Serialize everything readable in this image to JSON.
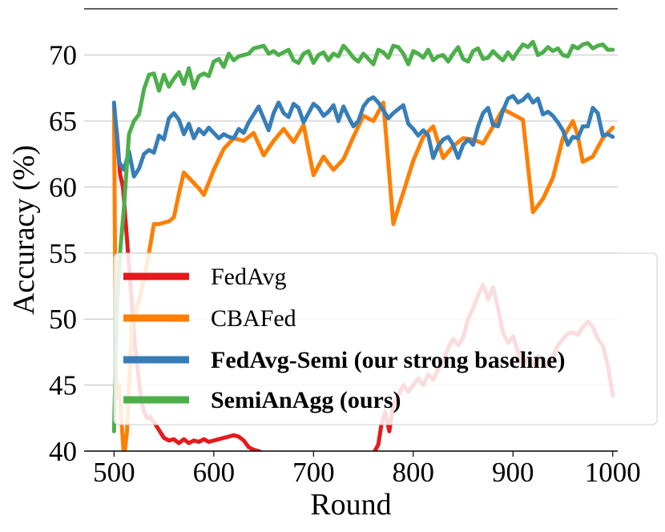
{
  "chart_data": {
    "type": "line",
    "xlabel": "Round",
    "ylabel": "Accuracy (%)",
    "xlim": [
      470,
      1005
    ],
    "ylim": [
      40,
      73.5
    ],
    "x_ticks": [
      500,
      600,
      700,
      800,
      900,
      1000
    ],
    "y_ticks": [
      40,
      45,
      50,
      55,
      60,
      65,
      70
    ],
    "grid": "horizontal",
    "legend_position": "lower-right",
    "series": [
      {
        "name": "FedAvg",
        "color": "#e41a1c",
        "bold": false,
        "x": [
          500,
          503,
          506,
          509,
          512,
          515,
          518,
          521,
          524,
          527,
          530,
          533,
          536,
          540,
          545,
          550,
          555,
          560,
          565,
          570,
          575,
          580,
          585,
          590,
          595,
          600,
          605,
          610,
          615,
          620,
          625,
          630,
          635,
          640,
          645,
          650,
          660,
          680,
          700,
          720,
          740,
          760,
          765,
          768,
          772,
          776,
          780,
          785,
          790,
          795,
          800,
          805,
          810,
          815,
          820,
          825,
          830,
          835,
          840,
          845,
          850,
          855,
          860,
          865,
          870,
          872,
          875,
          880,
          885,
          890,
          895,
          900,
          905,
          910,
          915,
          920,
          925,
          930,
          935,
          940,
          945,
          950,
          955,
          960,
          965,
          970,
          975,
          980,
          985,
          990,
          995,
          1000
        ],
        "y": [
          66,
          64,
          61,
          60,
          57,
          54,
          51,
          48,
          46,
          44,
          43,
          42.5,
          42.6,
          42.2,
          41.6,
          41.0,
          40.8,
          40.9,
          40.6,
          40.9,
          40.6,
          40.8,
          40.7,
          40.9,
          40.7,
          40.8,
          40.9,
          41.0,
          41.1,
          41.2,
          41.1,
          40.8,
          40.3,
          40.1,
          40.0,
          39.8,
          39.5,
          39.5,
          39.5,
          39.5,
          39.5,
          39.8,
          40.5,
          42,
          43,
          41.5,
          43.5,
          44.2,
          45,
          44.5,
          45,
          45.5,
          45,
          45.8,
          45.4,
          46.2,
          46.8,
          47.8,
          48.5,
          48.0,
          48.6,
          50,
          50.8,
          51.8,
          52.6,
          52.2,
          51.5,
          52.4,
          50.8,
          49,
          48.2,
          48.7,
          47.5,
          46.5,
          47.0,
          46.5,
          47.2,
          46.6,
          46.5,
          47.2,
          48.0,
          48.5,
          48.9,
          49,
          48.8,
          49.4,
          49.8,
          49.4,
          48.5,
          48.0,
          46.5,
          44.2
        ]
      },
      {
        "name": "CBAFed",
        "color": "#ff7f00",
        "bold": false,
        "x": [
          500,
          502,
          505,
          510,
          513,
          518,
          522,
          530,
          535,
          540,
          545,
          550,
          555,
          560,
          565,
          570,
          580,
          585,
          590,
          600,
          610,
          620,
          630,
          640,
          650,
          660,
          670,
          680,
          690,
          700,
          710,
          720,
          730,
          740,
          750,
          760,
          770,
          780,
          790,
          800,
          810,
          820,
          830,
          840,
          850,
          860,
          870,
          880,
          890,
          900,
          910,
          920,
          930,
          940,
          950,
          960,
          965,
          970,
          980,
          990,
          1000
        ],
        "y": [
          66.0,
          44,
          45,
          39.5,
          41.5,
          50,
          50.5,
          53,
          55,
          57.2,
          57.2,
          57.3,
          57.4,
          57.7,
          59.5,
          61.1,
          60.3,
          59.9,
          59.4,
          61.3,
          62.9,
          63.7,
          63.5,
          64.1,
          62.4,
          63.5,
          64.4,
          63.4,
          64.7,
          60.9,
          62.3,
          61.3,
          62.1,
          63.8,
          65.4,
          65.0,
          66.4,
          57.2,
          59.6,
          62.0,
          63.8,
          64.6,
          62.2,
          63.1,
          63.7,
          63.6,
          63.3,
          64.6,
          65.9,
          65.5,
          65.1,
          58.1,
          59.1,
          60.7,
          63.7,
          65.0,
          63.9,
          61.9,
          62.3,
          63.7,
          64.5
        ]
      },
      {
        "name": "FedAvg-Semi (our strong baseline)",
        "color": "#377eb8",
        "bold": true,
        "x": [
          500,
          505,
          510,
          515,
          520,
          525,
          530,
          535,
          540,
          545,
          550,
          555,
          560,
          565,
          570,
          575,
          580,
          585,
          590,
          595,
          600,
          605,
          610,
          615,
          620,
          625,
          630,
          635,
          640,
          645,
          650,
          655,
          660,
          665,
          670,
          675,
          680,
          685,
          690,
          695,
          700,
          705,
          710,
          715,
          720,
          725,
          730,
          735,
          740,
          745,
          750,
          755,
          760,
          765,
          770,
          775,
          780,
          785,
          790,
          795,
          800,
          805,
          810,
          815,
          820,
          825,
          830,
          835,
          840,
          845,
          850,
          855,
          860,
          865,
          870,
          875,
          880,
          885,
          890,
          895,
          900,
          905,
          910,
          915,
          920,
          925,
          930,
          935,
          940,
          945,
          950,
          955,
          960,
          965,
          970,
          975,
          980,
          985,
          990,
          995,
          1000
        ],
        "y": [
          66.4,
          61.9,
          61.3,
          62.7,
          60.8,
          61.4,
          62.5,
          62.8,
          62.6,
          63.9,
          63.6,
          65.2,
          65.6,
          65.1,
          64.0,
          64.8,
          63.7,
          64.4,
          64.0,
          64.5,
          64.1,
          63.7,
          64.0,
          63.8,
          63.7,
          64.4,
          64.1,
          64.9,
          65.5,
          66.1,
          65.2,
          64.3,
          65.6,
          66.4,
          65.6,
          65.3,
          66.3,
          66.0,
          64.9,
          65.6,
          66.3,
          66.0,
          65.4,
          65.7,
          66.2,
          65.0,
          66.1,
          65.3,
          64.6,
          65.0,
          66.1,
          66.6,
          66.8,
          66.4,
          65.8,
          65.2,
          65.6,
          65.9,
          66.2,
          64.8,
          64.4,
          63.9,
          64.3,
          63.9,
          62.2,
          63.1,
          63.6,
          63.8,
          63.2,
          62.2,
          63.2,
          63.6,
          63.2,
          64.6,
          65.6,
          66.0,
          64.7,
          64.6,
          65.8,
          66.7,
          66.9,
          66.4,
          66.6,
          67.0,
          66.4,
          66.7,
          65.5,
          65.7,
          65.4,
          64.9,
          64.3,
          63.2,
          63.8,
          63.7,
          64.6,
          64.6,
          66.0,
          65.6,
          63.9,
          64.0,
          63.8
        ]
      },
      {
        "name": "SemiAnAgg (ours)",
        "color": "#4daf4a",
        "bold": true,
        "x": [
          500,
          503,
          506,
          510,
          515,
          520,
          525,
          530,
          535,
          540,
          545,
          550,
          555,
          560,
          565,
          570,
          575,
          580,
          585,
          590,
          595,
          600,
          605,
          610,
          615,
          620,
          625,
          630,
          635,
          640,
          645,
          650,
          655,
          660,
          665,
          670,
          675,
          680,
          685,
          690,
          695,
          700,
          705,
          710,
          715,
          720,
          725,
          730,
          735,
          740,
          745,
          750,
          755,
          760,
          765,
          770,
          775,
          780,
          785,
          790,
          795,
          800,
          805,
          810,
          815,
          820,
          825,
          830,
          835,
          840,
          845,
          850,
          855,
          860,
          865,
          870,
          875,
          880,
          885,
          890,
          895,
          900,
          905,
          910,
          915,
          920,
          925,
          930,
          935,
          940,
          945,
          950,
          955,
          960,
          965,
          970,
          975,
          980,
          985,
          990,
          995,
          1000
        ],
        "y": [
          41.5,
          51,
          55,
          58.5,
          64,
          65,
          65.5,
          67.4,
          68.5,
          68.6,
          67.3,
          68.5,
          67.6,
          68.2,
          68.7,
          67.8,
          69.0,
          67.5,
          68.4,
          68.6,
          68.4,
          69.5,
          69.7,
          69.1,
          70.1,
          69.6,
          69.9,
          70.0,
          70.1,
          70.5,
          70.6,
          70.7,
          70.1,
          70.3,
          70.0,
          70.2,
          70.4,
          69.6,
          69.4,
          70.1,
          70.3,
          69.4,
          70.0,
          70.2,
          69.6,
          70.1,
          69.9,
          70.7,
          70.3,
          69.8,
          69.5,
          70.1,
          69.7,
          69.3,
          70.4,
          70.2,
          69.8,
          70.7,
          70.6,
          70.1,
          69.3,
          70.3,
          70.1,
          69.8,
          70.4,
          69.6,
          69.9,
          70.0,
          69.5,
          70.1,
          70.6,
          69.7,
          69.5,
          70.3,
          70.5,
          69.7,
          69.8,
          70.3,
          69.9,
          69.6,
          70.2,
          69.7,
          70.3,
          70.8,
          70.6,
          71.0,
          70.0,
          70.2,
          70.6,
          70.3,
          70.5,
          70.0,
          69.9,
          70.7,
          70.5,
          70.8,
          70.9,
          70.5,
          70.7,
          70.8,
          70.4,
          70.4
        ]
      }
    ]
  }
}
